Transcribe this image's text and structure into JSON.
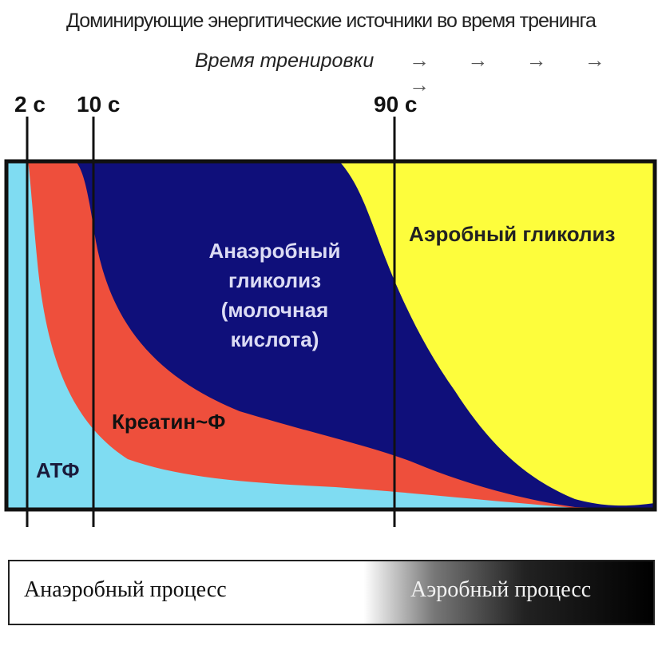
{
  "title": "Доминирующие энергитические источники во время тренинга",
  "time_axis": {
    "label": "Время тренировки",
    "arrows": "→ → → → →",
    "ticks": [
      "2 c",
      "10 c",
      "90 c"
    ]
  },
  "regions": {
    "atp": "АТФ",
    "creatine": "Креатин~Ф",
    "anaerobic": [
      "Анаэробный",
      "гликолиз",
      "(молочная",
      "кислота)"
    ],
    "aerobic": "Аэробный гликолиз"
  },
  "process_bar": {
    "left": "Анаэробный процесс",
    "right": "Аэробный процесс"
  },
  "colors": {
    "atp": "#7fdcf2",
    "creatine": "#ee4f3c",
    "anaerobic": "#0f0f7a",
    "aerobic": "#fdfd3c",
    "frame": "#111111"
  },
  "chart_data": {
    "type": "area",
    "x": [
      "2 c",
      "10 c",
      "90 c"
    ],
    "series": [
      {
        "name": "АТФ"
      },
      {
        "name": "Креатин~Ф"
      },
      {
        "name": "Анаэробный гликолиз (молочная кислота)"
      },
      {
        "name": "Аэробный гликолиз"
      }
    ]
  }
}
